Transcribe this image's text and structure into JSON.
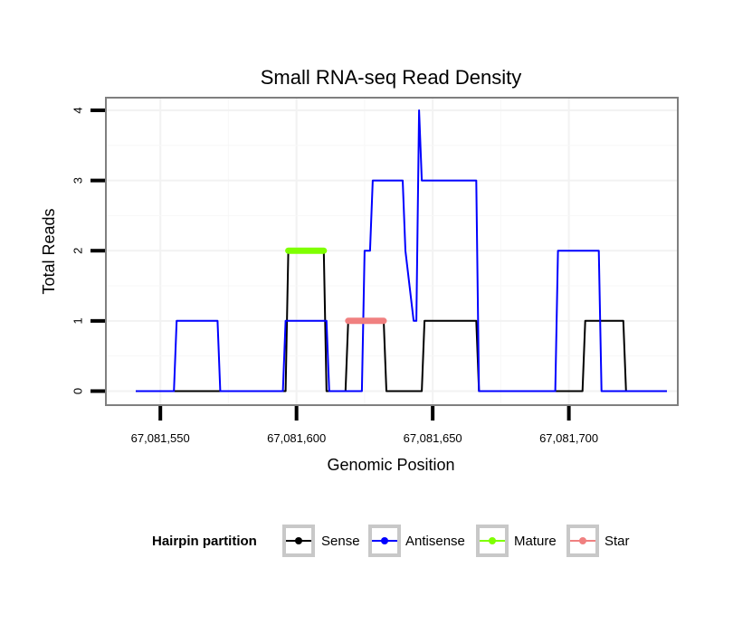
{
  "chart_data": {
    "type": "line",
    "title": "Small RNA-seq Read Density",
    "xlabel": "Genomic Position",
    "ylabel": "Total Reads",
    "xlim": [
      67081530,
      67081740
    ],
    "ylim": [
      -0.2,
      4.18
    ],
    "x_ticks": [
      {
        "value": 67081550,
        "label": "67,081,550"
      },
      {
        "value": 67081600,
        "label": "67,081,600"
      },
      {
        "value": 67081650,
        "label": "67,081,650"
      },
      {
        "value": 67081700,
        "label": "67,081,700"
      }
    ],
    "y_ticks": [
      {
        "value": 0,
        "label": "0"
      },
      {
        "value": 1,
        "label": "1"
      },
      {
        "value": 2,
        "label": "2"
      },
      {
        "value": 3,
        "label": "3"
      },
      {
        "value": 4,
        "label": "4"
      }
    ],
    "grid": true,
    "legend": {
      "title": "Hairpin partition",
      "position": "bottom",
      "entries": [
        "Sense",
        "Antisense",
        "Mature",
        "Star"
      ]
    },
    "series": [
      {
        "name": "Sense",
        "color": "#000000",
        "x": [
          67081541,
          67081596,
          67081597,
          67081610,
          67081611,
          67081618,
          67081619,
          67081632,
          67081633,
          67081646,
          67081647,
          67081666,
          67081667,
          67081705,
          67081706,
          67081720,
          67081721,
          67081736
        ],
        "y": [
          0,
          0,
          2,
          2,
          0,
          0,
          1,
          1,
          0,
          0,
          1,
          1,
          0,
          0,
          1,
          1,
          0,
          0
        ]
      },
      {
        "name": "Antisense",
        "color": "#0000ff",
        "x": [
          67081541,
          67081555,
          67081556,
          67081571,
          67081572,
          67081595,
          67081596,
          67081611,
          67081612,
          67081624,
          67081625,
          67081627,
          67081628,
          67081639,
          67081640,
          67081643,
          67081644,
          67081645,
          67081646,
          67081647,
          67081648,
          67081666,
          67081667,
          67081695,
          67081696,
          67081711,
          67081712,
          67081736
        ],
        "y": [
          0,
          0,
          1,
          1,
          0,
          0,
          1,
          1,
          0,
          0,
          2,
          2,
          3,
          3,
          2,
          1,
          1,
          4,
          3,
          3,
          3,
          3,
          0,
          0,
          2,
          2,
          0,
          0
        ]
      },
      {
        "name": "Mature",
        "color": "#7fff00",
        "x": [
          67081597,
          67081610
        ],
        "y": [
          2,
          2
        ]
      },
      {
        "name": "Star",
        "color": "#f08080",
        "x": [
          67081619,
          67081632
        ],
        "y": [
          1,
          1
        ]
      }
    ]
  }
}
